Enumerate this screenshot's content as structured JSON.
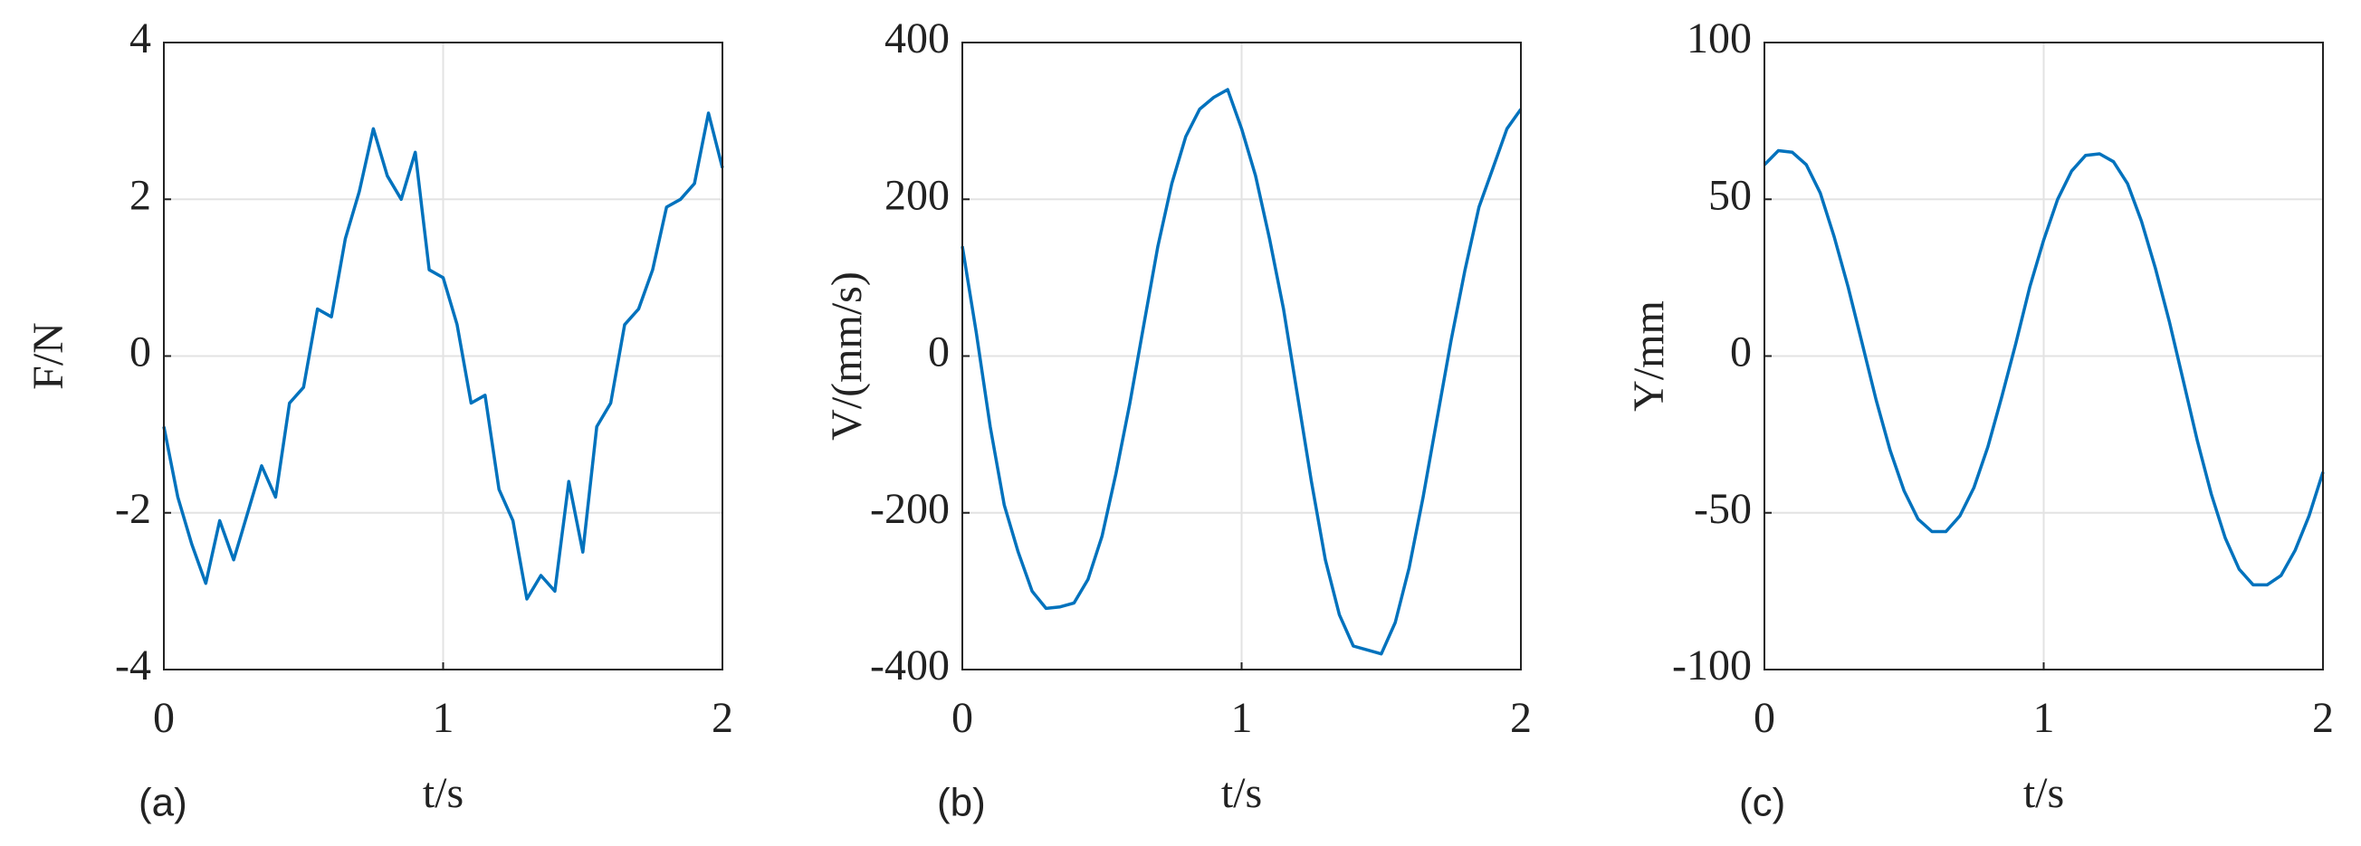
{
  "chart_data": [
    {
      "type": "line",
      "panel_label": "(a)",
      "xlabel": "t/s",
      "ylabel": "F/N",
      "color": "#0072bd",
      "grid": true,
      "x": [
        0,
        0.05,
        0.1,
        0.15,
        0.2,
        0.25,
        0.3,
        0.35,
        0.4,
        0.45,
        0.5,
        0.55,
        0.6,
        0.65,
        0.7,
        0.75,
        0.8,
        0.85,
        0.9,
        0.95,
        1,
        1.05,
        1.1,
        1.15,
        1.2,
        1.25,
        1.3,
        1.35,
        1.4,
        1.45,
        1.5,
        1.55,
        1.6,
        1.65,
        1.7,
        1.75,
        1.8,
        1.85,
        1.9,
        1.95,
        2
      ],
      "values": [
        -0.9,
        -1.8,
        -2.4,
        -2.9,
        -2.1,
        -2.6,
        -2.0,
        -1.4,
        -1.8,
        -0.6,
        -0.4,
        0.6,
        0.5,
        1.5,
        2.1,
        2.9,
        2.3,
        2.0,
        2.6,
        1.1,
        1.0,
        0.4,
        -0.6,
        -0.5,
        -1.7,
        -2.1,
        -3.1,
        -2.8,
        -3.0,
        -1.6,
        -2.5,
        -0.9,
        -0.6,
        0.4,
        0.6,
        1.1,
        1.9,
        2.0,
        2.2,
        3.1,
        2.4
      ],
      "xlim": [
        0,
        2
      ],
      "xticks": [
        0,
        1,
        2
      ],
      "ylim": [
        -4,
        4
      ],
      "yticks": [
        -4,
        -2,
        0,
        2,
        4
      ]
    },
    {
      "type": "line",
      "panel_label": "(b)",
      "xlabel": "t/s",
      "ylabel": "V/(mm/s)",
      "color": "#0072bd",
      "grid": true,
      "x": [
        0,
        0.05,
        0.1,
        0.15,
        0.2,
        0.25,
        0.3,
        0.35,
        0.4,
        0.45,
        0.5,
        0.55,
        0.6,
        0.65,
        0.7,
        0.75,
        0.8,
        0.85,
        0.9,
        0.95,
        1,
        1.05,
        1.1,
        1.15,
        1.2,
        1.25,
        1.3,
        1.35,
        1.4,
        1.45,
        1.5,
        1.55,
        1.6,
        1.65,
        1.7,
        1.75,
        1.8,
        1.85,
        1.9,
        1.95,
        2
      ],
      "values": [
        140,
        30,
        -90,
        -190,
        -250,
        -300,
        -322,
        -320,
        -315,
        -285,
        -230,
        -150,
        -60,
        40,
        140,
        220,
        280,
        315,
        330,
        340,
        290,
        230,
        150,
        60,
        -50,
        -160,
        -260,
        -330,
        -370,
        -375,
        -380,
        -340,
        -270,
        -180,
        -80,
        20,
        110,
        190,
        240,
        290,
        315
      ],
      "xlim": [
        0,
        2
      ],
      "xticks": [
        0,
        1,
        2
      ],
      "ylim": [
        -400,
        400
      ],
      "yticks": [
        -400,
        -200,
        0,
        200,
        400
      ]
    },
    {
      "type": "line",
      "panel_label": "(c)",
      "xlabel": "t/s",
      "ylabel": "Y/mm",
      "color": "#0072bd",
      "grid": true,
      "x": [
        0,
        0.05,
        0.1,
        0.15,
        0.2,
        0.25,
        0.3,
        0.35,
        0.4,
        0.45,
        0.5,
        0.55,
        0.6,
        0.65,
        0.7,
        0.75,
        0.8,
        0.85,
        0.9,
        0.95,
        1,
        1.05,
        1.1,
        1.15,
        1.2,
        1.25,
        1.3,
        1.35,
        1.4,
        1.45,
        1.5,
        1.55,
        1.6,
        1.65,
        1.7,
        1.75,
        1.8,
        1.85,
        1.9,
        1.95,
        2
      ],
      "values": [
        61,
        65.5,
        65,
        61,
        52,
        38,
        22,
        4,
        -14,
        -30,
        -43,
        -52,
        -56,
        -56,
        -51,
        -42,
        -29,
        -13,
        4,
        22,
        37,
        50,
        59,
        64,
        64.5,
        62,
        55,
        43,
        28,
        11,
        -8,
        -27,
        -44,
        -58,
        -68,
        -73,
        -73,
        -70,
        -62,
        -51,
        -37
      ],
      "xlim": [
        0,
        2
      ],
      "xticks": [
        0,
        1,
        2
      ],
      "ylim": [
        -100,
        100
      ],
      "yticks": [
        -100,
        -50,
        0,
        50,
        100
      ]
    }
  ]
}
